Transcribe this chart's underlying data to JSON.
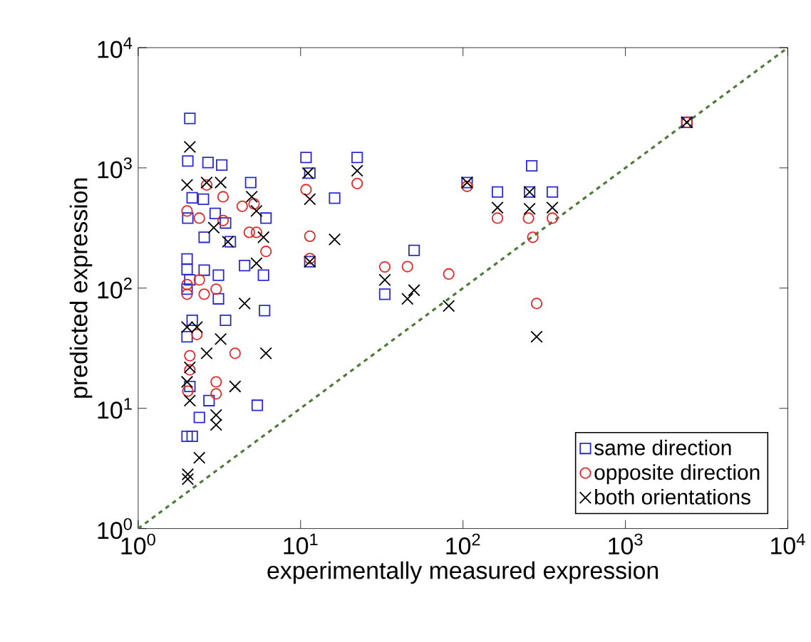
{
  "chart_data": {
    "type": "scatter",
    "xlabel": "experimentally measured expression",
    "ylabel": "predicted expression",
    "log": "xy",
    "grid": false,
    "legend": "bottom right",
    "xlim": [
      1,
      10000
    ],
    "ylim": [
      1,
      10000
    ],
    "xticks": [
      {
        "value": 1,
        "label": "10$^{0}$"
      },
      {
        "value": 10,
        "label": "10$^{1}$"
      },
      {
        "value": 100,
        "label": "10$^{2}$"
      },
      {
        "value": 1000,
        "label": "10$^{3}$"
      },
      {
        "value": 10000,
        "label": "10$^{4}$"
      }
    ],
    "yticks": [
      {
        "value": 1,
        "label": "10$^{0}$"
      },
      {
        "value": 10,
        "label": "10$^{1}$"
      },
      {
        "value": 100,
        "label": "10$^{2}$"
      },
      {
        "value": 1000,
        "label": "10$^{3}$"
      },
      {
        "value": 10000,
        "label": "10$^{4}$"
      }
    ],
    "series": [
      {
        "type": "line",
        "color": "#4f7a3a",
        "line_style": "dashed",
        "marker": "none",
        "x": [
          1,
          10000
        ],
        "values": [
          1,
          10000
        ]
      },
      {
        "name": "same direction",
        "color": "#2a2ad0",
        "marker": "square",
        "x": [
          10.8,
          11.4,
          16.2,
          22.3,
          11.4,
          50,
          33,
          106,
          163,
          265,
          257,
          355,
          2390,
          2.08,
          2.02,
          2.69,
          3.27,
          4.93,
          2.15,
          2.52,
          2.02,
          2.98,
          3.45,
          6.12,
          2.55,
          3.69,
          2.0,
          4.52,
          5.91,
          2.0,
          2.08,
          2.55,
          3.12,
          2.0,
          6.0,
          3.45,
          5.41,
          2.73,
          2.38,
          2.0,
          2.15,
          2.08,
          2.0,
          2.15,
          3.12
        ],
        "values": [
          1220,
          904,
          560,
          1220,
          166,
          206,
          89,
          755,
          630,
          1040,
          630,
          630,
          2390,
          2580,
          1140,
          1107,
          1056,
          755,
          564,
          549,
          382,
          418,
          348,
          382,
          265,
          243,
          175,
          154,
          128,
          143,
          117,
          141,
          128,
          98,
          65,
          54,
          10.6,
          11.6,
          8.4,
          5.85,
          5.85,
          15.2,
          39.4,
          54,
          81.5
        ]
      },
      {
        "name": "opposite direction",
        "color": "#e02a2a",
        "marker": "circle",
        "x": [
          10.8,
          11.4,
          11.4,
          22.3,
          33,
          45.5,
          81.7,
          106,
          163,
          253,
          355,
          269,
          284,
          2390,
          2.64,
          3.33,
          2.0,
          4.37,
          5.17,
          4.83,
          6.12,
          2.38,
          3.33,
          2.0,
          2.38,
          3.02,
          5.35,
          3.95,
          2.3,
          2.08,
          2.08,
          3.02,
          3.02,
          2.02,
          2.0,
          2.55
        ],
        "values": [
          659,
          270,
          176,
          741,
          150,
          151,
          131,
          702,
          382,
          382,
          382,
          265,
          74.5,
          2390,
          721,
          575,
          438,
          479,
          502,
          291,
          202,
          382,
          365,
          107,
          117,
          98,
          291,
          28.7,
          41.2,
          27.4,
          20.9,
          16.6,
          13.2,
          13.9,
          89,
          89
        ]
      },
      {
        "name": "both orientations",
        "color": "#000000",
        "marker": "cross",
        "x": [
          11.1,
          11.4,
          16.2,
          11.4,
          22.3,
          33,
          45.5,
          50,
          81.7,
          106,
          163,
          257,
          257,
          355,
          284,
          2390,
          2.08,
          2.0,
          2.64,
          3.22,
          5.0,
          5.35,
          5.91,
          2.92,
          3.57,
          5.35,
          4.52,
          6.12,
          3.22,
          2.64,
          3.95,
          2.0,
          2.08,
          3.02,
          3.02,
          2.38,
          2.02,
          2.02,
          2.08,
          2.0,
          2.3
        ],
        "values": [
          904,
          549,
          254,
          166,
          946,
          117,
          81.5,
          96,
          71,
          755,
          467,
          630,
          457,
          467,
          39.4,
          2390,
          1493,
          721,
          755,
          755,
          575,
          438,
          265,
          318,
          243,
          161,
          74.5,
          28.7,
          37.7,
          28.7,
          15.2,
          16.6,
          11.6,
          8.8,
          7.3,
          3.88,
          2.83,
          2.58,
          21.9,
          47.3,
          47.3
        ]
      }
    ]
  }
}
